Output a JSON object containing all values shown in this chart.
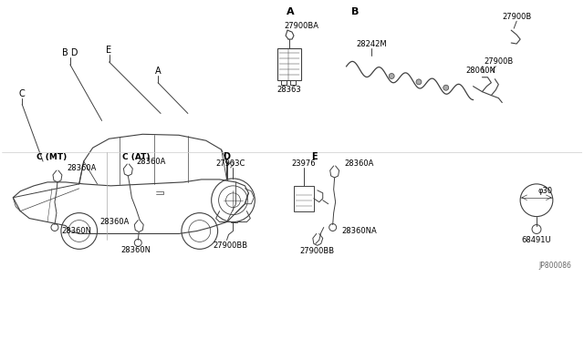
{
  "bg_color": "#ffffff",
  "line_color": "#404040",
  "text_color": "#000000",
  "fig_width": 6.4,
  "fig_height": 3.72,
  "labels": {
    "section_A": "A",
    "section_B": "B",
    "section_C_MT": "C (MT)",
    "section_C_AT": "C (AT)",
    "section_D": "D",
    "section_E": "E",
    "part_27900BA": "27900BA",
    "part_28363": "28363",
    "part_28242M": "28242M",
    "part_27900B_top": "27900B",
    "part_27900B_bot": "27900B",
    "part_28060N": "28060N",
    "part_28360A_c1": "28360A",
    "part_28360N_c1": "28360N",
    "part_28360A_c2a": "28360A",
    "part_28360A_c2b": "28360A",
    "part_28360N_c2": "28360N",
    "part_27903C": "27903C",
    "part_23976": "23976",
    "part_27900BB": "27900BB",
    "part_28360A_e": "28360A",
    "part_28360NA": "28360NA",
    "part_68491U": "68491U",
    "part_phi30": "φ30",
    "ref_code": "JP800086",
    "label_BD": "B D",
    "label_E": "E",
    "label_A": "A",
    "label_C": "C"
  }
}
